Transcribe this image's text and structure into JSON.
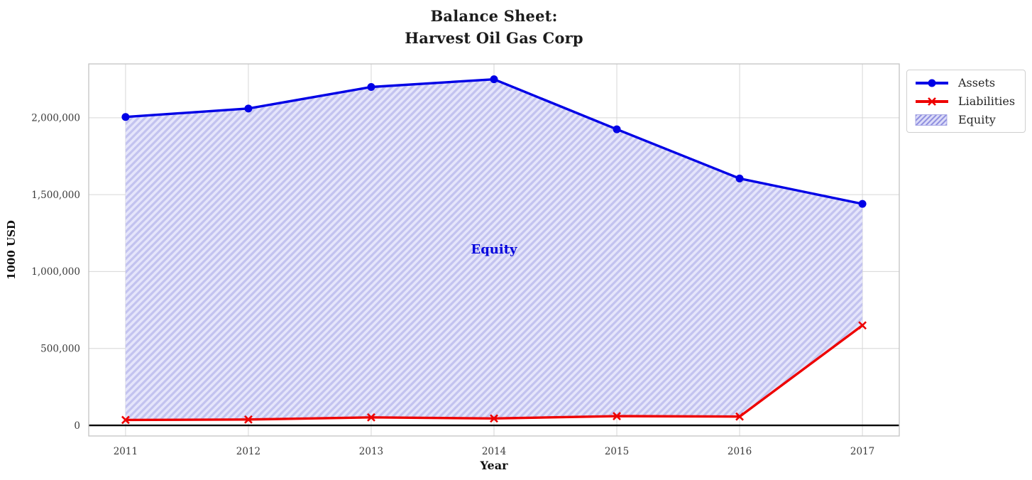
{
  "title": {
    "line1": "Balance Sheet:",
    "line2": "Harvest Oil Gas Corp"
  },
  "chart_data": {
    "type": "line",
    "x": [
      2011,
      2012,
      2013,
      2014,
      2015,
      2016,
      2017
    ],
    "series": [
      {
        "name": "Assets",
        "color": "#0000e6",
        "marker": "o",
        "values": [
          2005000,
          2060000,
          2200000,
          2250000,
          1925000,
          1605000,
          1440000
        ]
      },
      {
        "name": "Liabilities",
        "color": "#ee0000",
        "marker": "x",
        "values": [
          35000,
          38000,
          52000,
          45000,
          60000,
          57000,
          650000
        ]
      }
    ],
    "fill_between": {
      "label": "Equity",
      "upper": "Assets",
      "lower": "Liabilities",
      "fill_color": "#e5e5fb",
      "hatch_color": "#c3c3ef",
      "hatch_style": "///"
    },
    "annotation": {
      "text": "Equity",
      "x": 2014,
      "y": 1145000,
      "color": "#0000dd"
    },
    "title": "Balance Sheet:\nHarvest Oil Gas Corp",
    "xlabel": "Year",
    "ylabel": "1000 USD",
    "xtick_labels": [
      "2011",
      "2012",
      "2013",
      "2014",
      "2015",
      "2016",
      "2017"
    ],
    "yticks": [
      0,
      500000,
      1000000,
      1500000,
      2000000
    ],
    "ytick_labels": [
      "0",
      "500,000",
      "1,000,000",
      "1,500,000",
      "2,000,000"
    ],
    "xlim": [
      2010.7,
      2017.3
    ],
    "ylim": [
      -69000,
      2350000
    ],
    "grid": true,
    "grid_color": "#d6d6d6",
    "border_color": "#c4c4c4",
    "zero_line": {
      "y": 0,
      "color": "#000000"
    },
    "legend_position": "upper right outside plot"
  },
  "legend": {
    "items": [
      {
        "label": "Assets"
      },
      {
        "label": "Liabilities"
      },
      {
        "label": "Equity"
      }
    ]
  }
}
